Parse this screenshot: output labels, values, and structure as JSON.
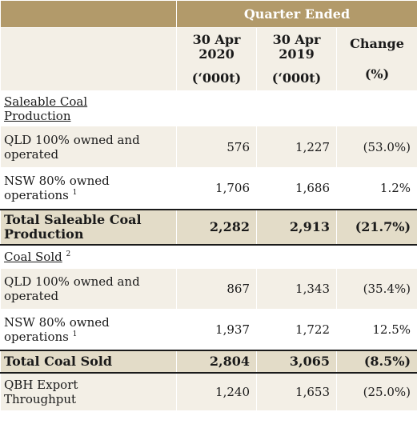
{
  "header": {
    "group_label": "Quarter Ended",
    "col1": {
      "line1": "30 Apr",
      "line2": "2020",
      "unit": "(‘000t)"
    },
    "col2": {
      "line1": "30 Apr",
      "line2": "2019",
      "unit": "(‘000t)"
    },
    "col3": {
      "line1": "Change",
      "unit": "(%)"
    }
  },
  "sections": {
    "saleable": {
      "title_line1": "Saleable Coal",
      "title_line2": "Production"
    },
    "sold": {
      "title": "Coal Sold",
      "footnote": "2"
    }
  },
  "rows": {
    "qld_prod": {
      "label_line1": "QLD 100% owned and",
      "label_line2": "operated",
      "v2020": "576",
      "v2019": "1,227",
      "change": "(53.0%)"
    },
    "nsw_prod": {
      "label_line1": "NSW 80% owned",
      "label_line2": "operations",
      "footnote": "1",
      "v2020": "1,706",
      "v2019": "1,686",
      "change": "1.2%"
    },
    "total_prod": {
      "label_line1": "Total Saleable Coal",
      "label_line2": "Production",
      "v2020": "2,282",
      "v2019": "2,913",
      "change": "(21.7%)"
    },
    "qld_sold": {
      "label_line1": "QLD 100% owned and",
      "label_line2": "operated",
      "v2020": "867",
      "v2019": "1,343",
      "change": "(35.4%)"
    },
    "nsw_sold": {
      "label_line1": "NSW 80% owned",
      "label_line2": "operations",
      "footnote": "1",
      "v2020": "1,937",
      "v2019": "1,722",
      "change": "12.5%"
    },
    "total_sold": {
      "label": "Total Coal Sold",
      "v2020": "2,804",
      "v2019": "3,065",
      "change": "(8.5%)"
    },
    "qbh": {
      "label_line1": "QBH Export",
      "label_line2": "Throughput",
      "v2020": "1,240",
      "v2019": "1,653",
      "change": "(25.0%)"
    }
  }
}
